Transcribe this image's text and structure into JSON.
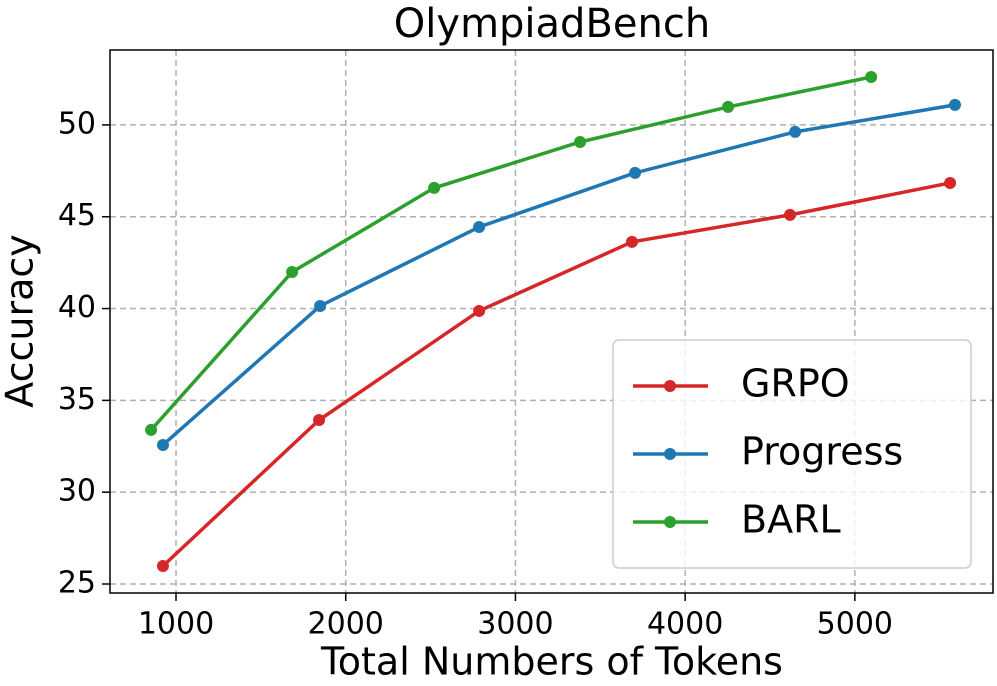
{
  "chart_data": {
    "type": "line",
    "title": "OlympiadBench",
    "x_label": "Total Numbers of Tokens",
    "y_label": "Accuracy",
    "xlim": [
      611,
      5814
    ],
    "ylim": [
      24.51,
      54.08
    ],
    "xticks": [
      1000,
      2000,
      3000,
      4000,
      5000
    ],
    "yticks": [
      25,
      30,
      35,
      40,
      45,
      50
    ],
    "grid": true,
    "legend": "lower right",
    "series": [
      {
        "name": "GRPO",
        "color": "#d62728",
        "x": [
          923,
          1843,
          2786,
          3687,
          4618,
          5561
        ],
        "values": [
          25.98,
          33.93,
          39.87,
          43.63,
          45.1,
          46.84
        ]
      },
      {
        "name": "Progress",
        "color": "#1f77b4",
        "x": [
          923,
          1849,
          2786,
          3705,
          4648,
          5590
        ],
        "values": [
          32.57,
          40.14,
          44.44,
          47.39,
          49.62,
          51.09
        ]
      },
      {
        "name": "BARL",
        "color": "#2ca02c",
        "x": [
          853,
          1684,
          2521,
          3381,
          4253,
          5096
        ],
        "values": [
          33.39,
          41.99,
          46.57,
          49.07,
          50.98,
          52.61
        ]
      }
    ]
  }
}
